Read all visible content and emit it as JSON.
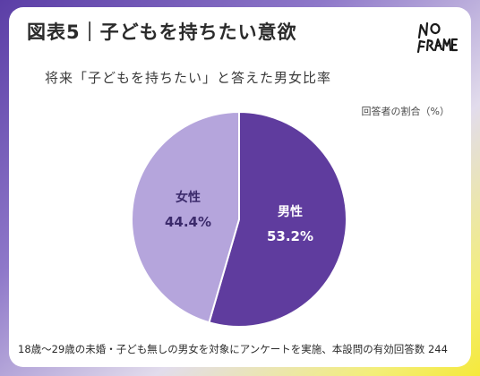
{
  "title": "図表5｜子どもを持ちたい意欲",
  "logo_text": "NO FRAME",
  "subtitle": "将来「子どもを持ちたい」と答えた男女比率",
  "unit_label": "回答者の割合（%）",
  "footnote": "18歳〜29歳の未婚・子ども無しの男女を対象にアンケートを実施、本設問の有効回答数 244",
  "chart_data": {
    "type": "pie",
    "title": "将来「子どもを持ちたい」と答えた男女比率",
    "slices": [
      {
        "label": "男性",
        "value": 53.2,
        "value_label": "53.2%",
        "color": "#5f3c9e"
      },
      {
        "label": "女性",
        "value": 44.4,
        "value_label": "44.4%",
        "color": "#b5a5dc"
      }
    ]
  },
  "colors": {
    "male": "#5f3c9e",
    "female": "#b5a5dc",
    "gradient_start": "#5b3ea6",
    "gradient_end": "#f5e93a"
  }
}
